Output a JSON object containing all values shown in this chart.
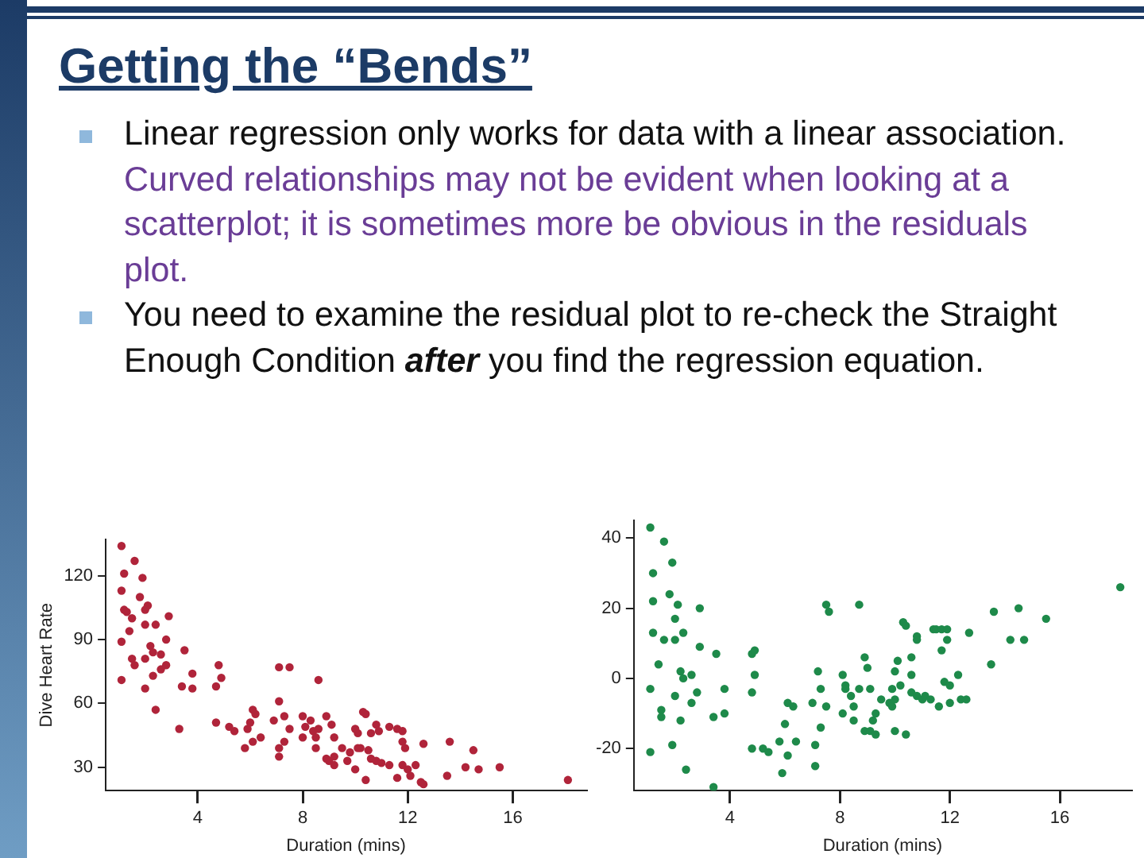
{
  "chart_data": [
    {
      "type": "scatter",
      "title": "Getting the “Bends”",
      "annotations": [
        "Linear regression only works for data with a linear association.",
        "Curved relationships may not be evident when looking at a scatterplot; it is sometimes more be obvious in the residuals plot.",
        "You need to examine the residual plot to re-check the Straight Enough Condition",
        "after",
        "you find the regression equation."
      ],
      "xlabel": "Duration (mins)",
      "ylabel": "Dive Heart Rate",
      "xlim": [
        0.5,
        18.8
      ],
      "ylim": [
        19,
        137
      ],
      "xticks": [
        4,
        8,
        12,
        16
      ],
      "yticks": [
        30,
        60,
        90,
        120
      ],
      "marker": "circle",
      "series": [
        {
          "color": "#b0243a",
          "x": [
            1.1,
            1.6,
            1.2,
            1.9,
            1.1,
            1.8,
            2.1,
            1.2,
            1.3,
            2.0,
            1.5,
            2.9,
            2.4,
            2.0,
            1.4,
            1.1,
            2.8,
            2.2,
            2.3,
            3.5,
            2.6,
            1.5,
            2.0,
            1.6,
            2.8,
            2.6,
            4.8,
            3.8,
            4.9,
            1.1,
            2.3,
            3.4,
            3.8,
            2.0,
            4.7,
            2.4,
            3.3,
            7.1,
            7.5,
            8.6,
            7.1,
            6.1,
            6.2,
            7.3,
            4.7,
            5.2,
            5.4,
            5.9,
            6.0,
            6.9,
            7.5,
            6.4,
            6.1,
            5.8,
            7.3,
            7.1,
            7.1,
            8.0,
            8.3,
            8.1,
            8.4,
            8.6,
            8.9,
            9.1,
            8.0,
            8.5,
            9.2,
            8.5,
            9.5,
            9.8,
            8.9,
            9.0,
            9.2,
            9.7,
            9.2,
            10.0,
            10.1,
            10.0,
            10.3,
            10.4,
            10.6,
            10.8,
            10.9,
            10.1,
            10.2,
            10.5,
            10.6,
            10.8,
            11.0,
            11.3,
            10.4,
            11.3,
            11.6,
            11.8,
            11.8,
            11.9,
            11.8,
            12.0,
            12.1,
            11.6,
            12.3,
            12.6,
            12.5,
            12.6,
            13.5,
            13.6,
            14.2,
            14.5,
            14.7,
            15.5,
            18.1
          ],
          "values": [
            134,
            127,
            121,
            119,
            113,
            110,
            106,
            104,
            103,
            104,
            100,
            101,
            97,
            97,
            94,
            89,
            90,
            87,
            84,
            85,
            83,
            81,
            81,
            78,
            78,
            76,
            78,
            74,
            72,
            71,
            73,
            68,
            67,
            67,
            68,
            57,
            48,
            77,
            77,
            71,
            61,
            57,
            55,
            54,
            51,
            49,
            47,
            48,
            51,
            52,
            48,
            44,
            42,
            39,
            42,
            39,
            35,
            54,
            52,
            49,
            47,
            48,
            54,
            50,
            44,
            44,
            44,
            39,
            39,
            37,
            34,
            33,
            35,
            33,
            31,
            29,
            46,
            48,
            56,
            55,
            46,
            50,
            47,
            39,
            39,
            38,
            34,
            33,
            32,
            31,
            24,
            49,
            48,
            47,
            42,
            39,
            31,
            29,
            26,
            25,
            31,
            41,
            23,
            22,
            26,
            42,
            30,
            38,
            29,
            30,
            24
          ]
        }
      ]
    },
    {
      "type": "scatter",
      "xlabel": "Duration (mins)",
      "xlim": [
        0.5,
        18.6
      ],
      "ylim": [
        -32,
        45
      ],
      "xticks": [
        4,
        8,
        12,
        16
      ],
      "yticks": [
        -20,
        0,
        20,
        40
      ],
      "marker": "circle",
      "series": [
        {
          "color": "#1e8a4a",
          "x": [
            1.1,
            1.6,
            1.9,
            1.2,
            1.2,
            1.8,
            2.1,
            2.9,
            2.0,
            1.2,
            2.3,
            1.6,
            2.0,
            2.9,
            3.5,
            1.4,
            2.2,
            2.6,
            2.3,
            1.1,
            2.8,
            2.0,
            2.6,
            1.5,
            1.5,
            2.2,
            3.8,
            3.8,
            3.4,
            1.9,
            1.1,
            2.4,
            3.4,
            4.8,
            4.9,
            4.9,
            4.8,
            4.8,
            5.2,
            5.4,
            5.8,
            6.0,
            6.1,
            5.9,
            6.1,
            6.3,
            6.4,
            7.0,
            7.2,
            7.3,
            7.5,
            7.3,
            7.1,
            7.1,
            7.6,
            7.5,
            8.7,
            8.1,
            8.2,
            8.2,
            8.4,
            8.1,
            8.5,
            8.5,
            8.7,
            8.9,
            9.0,
            9.1,
            8.9,
            9.1,
            9.2,
            9.3,
            9.3,
            9.5,
            9.8,
            9.9,
            9.9,
            10.0,
            10.0,
            10.1,
            10.2,
            10.0,
            10.3,
            10.4,
            10.4,
            10.6,
            10.6,
            10.6,
            10.8,
            10.8,
            10.8,
            11.0,
            11.1,
            11.3,
            11.4,
            11.5,
            11.7,
            11.9,
            11.9,
            11.7,
            11.8,
            12.0,
            11.6,
            12.0,
            12.3,
            12.4,
            12.6,
            12.7,
            13.5,
            13.6,
            14.2,
            14.5,
            14.7,
            15.5,
            18.2
          ],
          "values": [
            43,
            39,
            33,
            30,
            22,
            24,
            21,
            20,
            17,
            13,
            13,
            11,
            11,
            9,
            7,
            4,
            2,
            1,
            0,
            -3,
            -4,
            -5,
            -7,
            -9,
            -11,
            -12,
            -3,
            -10,
            -11,
            -19,
            -21,
            -26,
            -31,
            7,
            8,
            1,
            -4,
            -20,
            -20,
            -21,
            -18,
            -13,
            -22,
            -27,
            -7,
            -8,
            -18,
            -7,
            2,
            -3,
            -8,
            -14,
            -19,
            -25,
            19,
            21,
            21,
            1,
            -2,
            -3,
            -5,
            -10,
            -8,
            -12,
            -3,
            6,
            3,
            -3,
            -15,
            -15,
            -12,
            -10,
            -16,
            -6,
            -7,
            -3,
            -8,
            -6,
            2,
            5,
            -2,
            -15,
            16,
            15,
            -16,
            6,
            1,
            -4,
            12,
            11,
            -5,
            -6,
            -5,
            -6,
            14,
            14,
            14,
            14,
            11,
            8,
            -1,
            -2,
            -8,
            -7,
            1,
            -6,
            -6,
            13,
            4,
            19,
            11,
            20,
            11,
            17,
            26
          ]
        }
      ]
    }
  ]
}
